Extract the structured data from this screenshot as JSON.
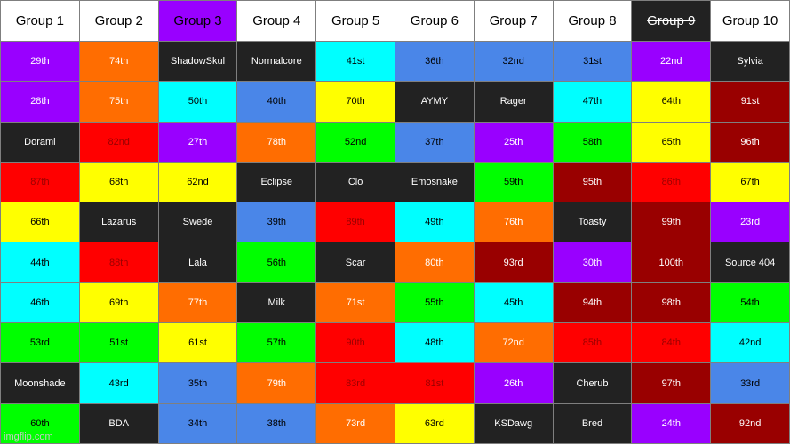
{
  "colors": {
    "purple": "#9900ff",
    "orange": "#ff6d01",
    "black": "#222222",
    "cyan": "#00ffff",
    "blue": "#4a86e8",
    "yellow": "#ffff00",
    "green": "#00ff00",
    "red": "#ff0000",
    "darkred": "#990000",
    "white": "#ffffff"
  },
  "headers": [
    {
      "label": "Group 1",
      "bg": "white"
    },
    {
      "label": "Group 2",
      "bg": "white"
    },
    {
      "label": "Group 3",
      "bg": "purple"
    },
    {
      "label": "Group 4",
      "bg": "white"
    },
    {
      "label": "Group 5",
      "bg": "white"
    },
    {
      "label": "Group 6",
      "bg": "white"
    },
    {
      "label": "Group 7",
      "bg": "white"
    },
    {
      "label": "Group 8",
      "bg": "white"
    },
    {
      "label": "Group 9",
      "bg": "black",
      "struck": true
    },
    {
      "label": "Group 10",
      "bg": "white"
    }
  ],
  "rows": [
    [
      {
        "text": "29th",
        "bg": "purple"
      },
      {
        "text": "74th",
        "bg": "orange"
      },
      {
        "text": "ShadowSkul",
        "bg": "black"
      },
      {
        "text": "Normalcore",
        "bg": "black"
      },
      {
        "text": "41st",
        "bg": "cyan"
      },
      {
        "text": "36th",
        "bg": "blue"
      },
      {
        "text": "32nd",
        "bg": "blue"
      },
      {
        "text": "31st",
        "bg": "blue"
      },
      {
        "text": "22nd",
        "bg": "purple"
      },
      {
        "text": "Sylvia",
        "bg": "black"
      }
    ],
    [
      {
        "text": "28th",
        "bg": "purple"
      },
      {
        "text": "75th",
        "bg": "orange"
      },
      {
        "text": "50th",
        "bg": "cyan"
      },
      {
        "text": "40th",
        "bg": "blue"
      },
      {
        "text": "70th",
        "bg": "yellow"
      },
      {
        "text": "AYMY",
        "bg": "black"
      },
      {
        "text": "Rager",
        "bg": "black"
      },
      {
        "text": "47th",
        "bg": "cyan"
      },
      {
        "text": "64th",
        "bg": "yellow"
      },
      {
        "text": "91st",
        "bg": "darkred"
      }
    ],
    [
      {
        "text": "Dorami",
        "bg": "black"
      },
      {
        "text": "82nd",
        "bg": "red"
      },
      {
        "text": "27th",
        "bg": "purple"
      },
      {
        "text": "78th",
        "bg": "orange"
      },
      {
        "text": "52nd",
        "bg": "green"
      },
      {
        "text": "37th",
        "bg": "blue"
      },
      {
        "text": "25th",
        "bg": "purple"
      },
      {
        "text": "58th",
        "bg": "green"
      },
      {
        "text": "65th",
        "bg": "yellow"
      },
      {
        "text": "96th",
        "bg": "darkred"
      }
    ],
    [
      {
        "text": "87th",
        "bg": "red"
      },
      {
        "text": "68th",
        "bg": "yellow"
      },
      {
        "text": "62nd",
        "bg": "yellow"
      },
      {
        "text": "Eclipse",
        "bg": "black"
      },
      {
        "text": "Clo",
        "bg": "black"
      },
      {
        "text": "Emosnake",
        "bg": "black"
      },
      {
        "text": "59th",
        "bg": "green"
      },
      {
        "text": "95th",
        "bg": "darkred"
      },
      {
        "text": "86th",
        "bg": "red"
      },
      {
        "text": "67th",
        "bg": "yellow"
      }
    ],
    [
      {
        "text": "66th",
        "bg": "yellow"
      },
      {
        "text": "Lazarus",
        "bg": "black"
      },
      {
        "text": "Swede",
        "bg": "black"
      },
      {
        "text": "39th",
        "bg": "blue"
      },
      {
        "text": "89th",
        "bg": "red"
      },
      {
        "text": "49th",
        "bg": "cyan"
      },
      {
        "text": "76th",
        "bg": "orange"
      },
      {
        "text": "Toasty",
        "bg": "black"
      },
      {
        "text": "99th",
        "bg": "darkred"
      },
      {
        "text": "23rd",
        "bg": "purple"
      }
    ],
    [
      {
        "text": "44th",
        "bg": "cyan"
      },
      {
        "text": "88th",
        "bg": "red"
      },
      {
        "text": "Lala",
        "bg": "black"
      },
      {
        "text": "56th",
        "bg": "green"
      },
      {
        "text": "Scar",
        "bg": "black"
      },
      {
        "text": "80th",
        "bg": "orange"
      },
      {
        "text": "93rd",
        "bg": "darkred"
      },
      {
        "text": "30th",
        "bg": "purple"
      },
      {
        "text": "100th",
        "bg": "darkred"
      },
      {
        "text": "Source 404",
        "bg": "black"
      }
    ],
    [
      {
        "text": "46th",
        "bg": "cyan"
      },
      {
        "text": "69th",
        "bg": "yellow"
      },
      {
        "text": "77th",
        "bg": "orange"
      },
      {
        "text": "Milk",
        "bg": "black"
      },
      {
        "text": "71st",
        "bg": "orange"
      },
      {
        "text": "55th",
        "bg": "green"
      },
      {
        "text": "45th",
        "bg": "cyan"
      },
      {
        "text": "94th",
        "bg": "darkred"
      },
      {
        "text": "98th",
        "bg": "darkred"
      },
      {
        "text": "54th",
        "bg": "green"
      }
    ],
    [
      {
        "text": "53rd",
        "bg": "green"
      },
      {
        "text": "51st",
        "bg": "green"
      },
      {
        "text": "61st",
        "bg": "yellow"
      },
      {
        "text": "57th",
        "bg": "green"
      },
      {
        "text": "90th",
        "bg": "red"
      },
      {
        "text": "48th",
        "bg": "cyan"
      },
      {
        "text": "72nd",
        "bg": "orange"
      },
      {
        "text": "85th",
        "bg": "red"
      },
      {
        "text": "84th",
        "bg": "red"
      },
      {
        "text": "42nd",
        "bg": "cyan"
      }
    ],
    [
      {
        "text": "Moonshade",
        "bg": "black"
      },
      {
        "text": "43rd",
        "bg": "cyan"
      },
      {
        "text": "35th",
        "bg": "blue"
      },
      {
        "text": "79th",
        "bg": "orange"
      },
      {
        "text": "83rd",
        "bg": "red"
      },
      {
        "text": "81st",
        "bg": "red"
      },
      {
        "text": "26th",
        "bg": "purple"
      },
      {
        "text": "Cherub",
        "bg": "black"
      },
      {
        "text": "97th",
        "bg": "darkred"
      },
      {
        "text": "33rd",
        "bg": "blue"
      }
    ],
    [
      {
        "text": "60th",
        "bg": "green"
      },
      {
        "text": "BDA",
        "bg": "black"
      },
      {
        "text": "34th",
        "bg": "blue"
      },
      {
        "text": "38th",
        "bg": "blue"
      },
      {
        "text": "73rd",
        "bg": "orange"
      },
      {
        "text": "63rd",
        "bg": "yellow"
      },
      {
        "text": "KSDawg",
        "bg": "black"
      },
      {
        "text": "Bred",
        "bg": "black"
      },
      {
        "text": "24th",
        "bg": "purple"
      },
      {
        "text": "92nd",
        "bg": "darkred"
      }
    ]
  ],
  "watermark": "imgflip.com"
}
